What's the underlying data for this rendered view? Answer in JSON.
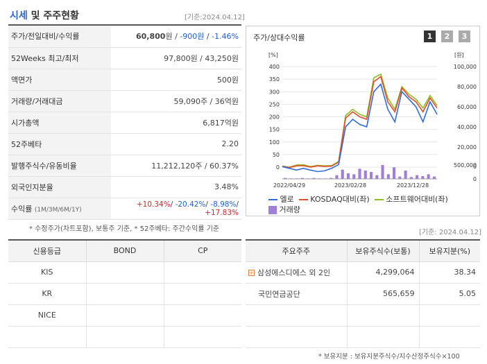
{
  "section": {
    "title_blue": "시세",
    "title_rest": "및 주주현황",
    "date_note": "[기준:2024.04.12]"
  },
  "info_rows": [
    {
      "label": "주가/전일대비/수익률",
      "value_main": "60,800",
      "value_unit": "원",
      "value_change": "-900원",
      "value_rate": "-1.46%"
    },
    {
      "label": "52Weeks 최고/최저",
      "value": "97,800원 / 43,250원"
    },
    {
      "label": "액면가",
      "value": "500원"
    },
    {
      "label": "거래량/거래대금",
      "value": "59,090주 / 36억원"
    },
    {
      "label": "시가총액",
      "value": "6,817억원"
    },
    {
      "label": "52주베타",
      "value": "2.20"
    },
    {
      "label": "발행주식수/유동비율",
      "value": "11,212,120주 / 60.37%"
    },
    {
      "label": "외국인지분율",
      "value": "3.48%"
    },
    {
      "label": "수익률",
      "label_sub": "(1M/3M/6M/1Y)",
      "r1": "+10.34%",
      "r2": "-20.42%",
      "r3": "-8.98%",
      "r4": "+17.83%",
      "sep": "/ "
    }
  ],
  "footnote_left": "* 수정주가(차트포함), 보통주 기준, * 52주베타: 주간수익률 기준",
  "chart": {
    "title": "주가/상대수익률",
    "pages": [
      "1",
      "2",
      "3"
    ],
    "left_unit": "[%]",
    "right_unit": "[원]",
    "legend": {
      "l1": "엘로",
      "l2": "KOSDAQ대비(좌)",
      "l3": "소프트웨어대비(좌)",
      "l4": "거래량"
    },
    "colors": {
      "price": "#2f6bdc",
      "kosdaq": "#e24a2b",
      "software": "#8cc21f",
      "volume": "#a07fd8"
    }
  },
  "chart_data": {
    "type": "line",
    "x_ticks": [
      "2022/04/29",
      "2023/02/28",
      "2023/12/28"
    ],
    "left_axis_ticks": [
      "400",
      "350",
      "300",
      "250",
      "200",
      "150",
      "100",
      "50",
      "0"
    ],
    "right_axis_ticks": [
      "100,000",
      "80,000",
      "60,000",
      "40,000",
      "20,000",
      "0"
    ],
    "volume_axis_ticks": [
      "500,000",
      "0"
    ],
    "ylim_left": [
      0,
      400
    ],
    "ylim_right": [
      0,
      100000
    ],
    "series": [
      {
        "name": "엘로",
        "values": [
          2,
          -5,
          -12,
          -5,
          -12,
          -18,
          -15,
          -5,
          10,
          160,
          190,
          170,
          160,
          300,
          330,
          230,
          180,
          300,
          270,
          240,
          180,
          260,
          210
        ]
      },
      {
        "name": "KOSDAQ대비(좌)",
        "values": [
          3,
          -2,
          5,
          6,
          0,
          5,
          3,
          4,
          20,
          195,
          220,
          200,
          190,
          340,
          360,
          260,
          220,
          315,
          280,
          260,
          220,
          275,
          235
        ]
      },
      {
        "name": "소프트웨어대비(좌)",
        "values": [
          4,
          0,
          8,
          9,
          2,
          7,
          5,
          6,
          22,
          205,
          230,
          210,
          200,
          355,
          370,
          275,
          230,
          320,
          290,
          270,
          235,
          285,
          245
        ]
      }
    ],
    "volume": [
      2,
      1,
      1,
      2,
      1,
      2,
      1,
      1,
      2,
      8,
      20,
      12,
      10,
      22,
      18,
      15,
      8,
      30,
      10,
      25,
      5,
      18,
      4,
      8,
      6,
      10,
      5
    ]
  },
  "footnote_date": "[기준: 2024.04.12]",
  "credit": {
    "headers": [
      "신용등급",
      "BOND",
      "CP"
    ],
    "rows": [
      {
        "agency": "KIS",
        "bond": "",
        "cp": ""
      },
      {
        "agency": "KR",
        "bond": "",
        "cp": ""
      },
      {
        "agency": "NICE",
        "bond": "",
        "cp": ""
      },
      {
        "agency": "",
        "bond": "",
        "cp": ""
      }
    ]
  },
  "holders": {
    "headers": [
      "주요주주",
      "보유주식수(보통)",
      "보유지분(%)"
    ],
    "rows": [
      {
        "name": "삼성에스디에스 외 2인",
        "shares": "4,299,064",
        "pct": "38.34"
      },
      {
        "name": "국민연금공단",
        "shares": "565,659",
        "pct": "5.05"
      }
    ]
  },
  "footnote_right": "* 보유지분 : 보유지분주식수/지수산정주식수×100"
}
